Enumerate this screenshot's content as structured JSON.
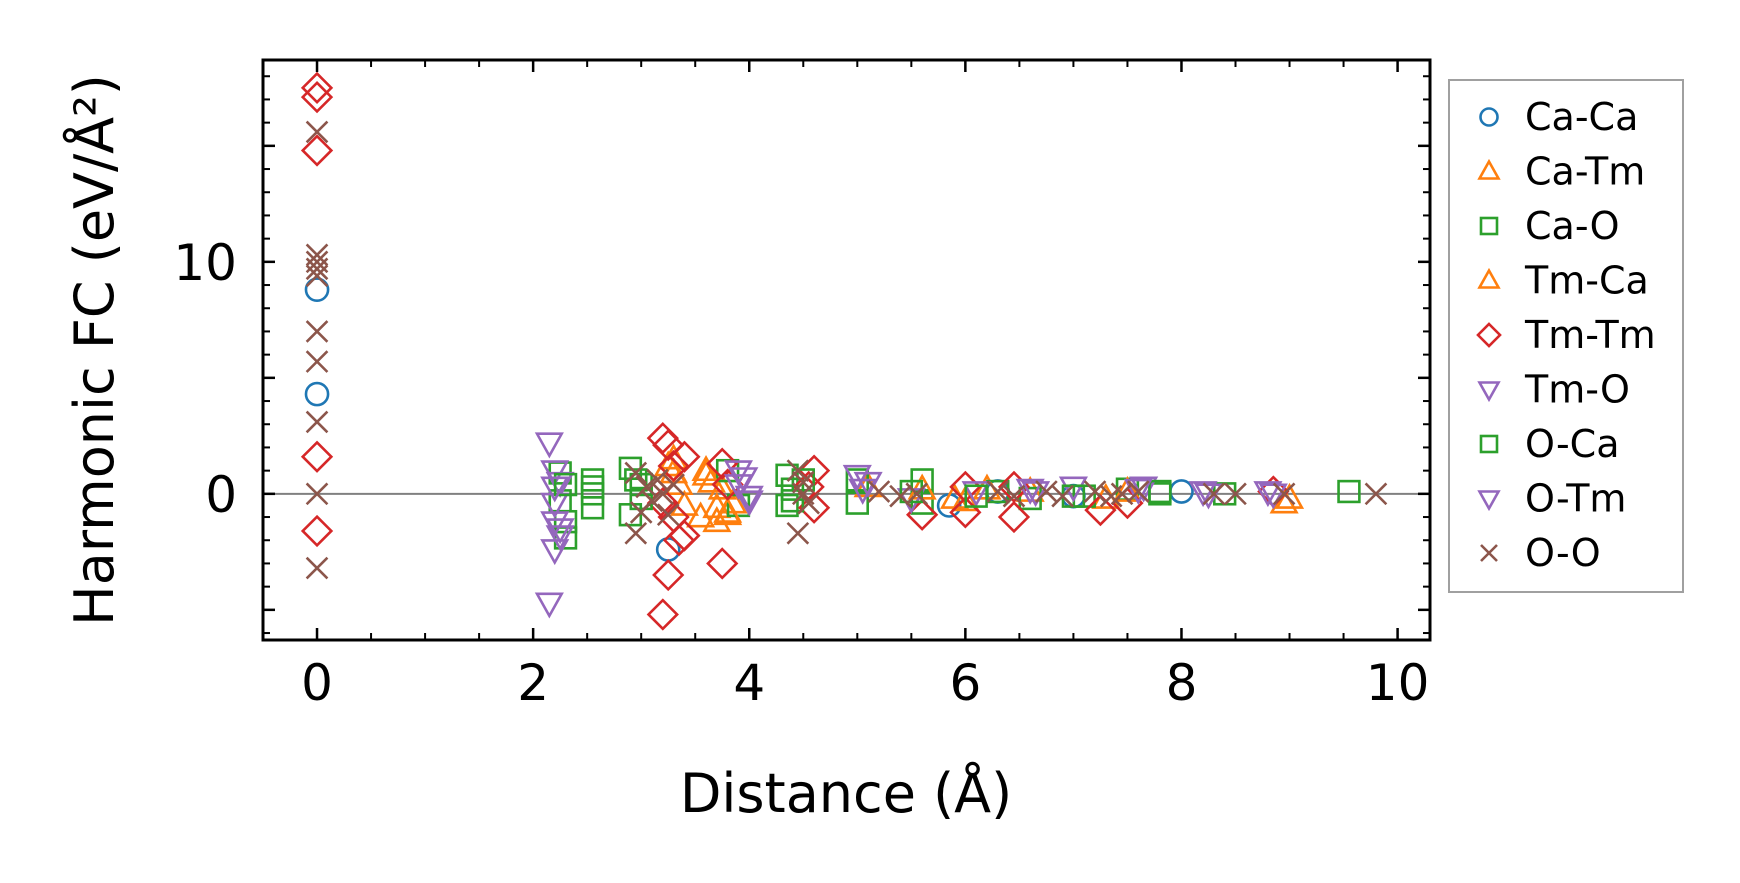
{
  "chart_data": {
    "type": "scatter",
    "title": "",
    "xlabel": "Distance (Å)",
    "ylabel": "Harmonic FC (eV/Å²)",
    "xlim": [
      -0.5,
      10.3
    ],
    "ylim": [
      -6.3,
      18.7
    ],
    "xticks": [
      0,
      2,
      4,
      6,
      8,
      10
    ],
    "yticks": [
      0,
      10
    ],
    "zero_line": true,
    "grid": false,
    "legend_position": "outside-right",
    "series": [
      {
        "name": "Ca-Ca",
        "marker": "circle",
        "color": "#1f77b4",
        "points": [
          [
            0,
            8.8
          ],
          [
            0,
            4.3
          ],
          [
            3.25,
            -2.4
          ],
          [
            5.85,
            -0.5
          ],
          [
            6.3,
            0.1
          ],
          [
            7.0,
            -0.1
          ],
          [
            8.0,
            0.1
          ]
        ]
      },
      {
        "name": "Ca-Tm",
        "marker": "triangle-up",
        "color": "#ff7f0e",
        "points": [
          [
            3.25,
            1.2
          ],
          [
            3.3,
            0.9
          ],
          [
            3.35,
            0.4
          ],
          [
            3.55,
            -1.0
          ],
          [
            3.6,
            1.0
          ],
          [
            3.65,
            0.5
          ],
          [
            3.7,
            -0.6
          ],
          [
            3.75,
            0.2
          ],
          [
            3.8,
            -0.9
          ],
          [
            3.85,
            -0.4
          ],
          [
            5.1,
            0.3
          ],
          [
            5.9,
            -0.2
          ],
          [
            6.2,
            0.2
          ],
          [
            6.6,
            0.1
          ],
          [
            7.3,
            -0.2
          ],
          [
            8.95,
            -0.4
          ]
        ]
      },
      {
        "name": "Ca-O",
        "marker": "square",
        "color": "#2ca02c",
        "points": [
          [
            2.25,
            0.9
          ],
          [
            2.25,
            -0.3
          ],
          [
            2.3,
            -1.2
          ],
          [
            2.3,
            -1.9
          ],
          [
            2.55,
            0.6
          ],
          [
            2.55,
            0.0
          ],
          [
            2.55,
            -0.6
          ],
          [
            2.9,
            1.1
          ],
          [
            2.9,
            -0.9
          ],
          [
            3.0,
            0.4
          ],
          [
            3.8,
            1.0
          ],
          [
            3.9,
            -0.5
          ],
          [
            4.35,
            0.8
          ],
          [
            4.35,
            -0.5
          ],
          [
            4.4,
            0.2
          ],
          [
            5.0,
            0.6
          ],
          [
            5.0,
            -0.4
          ],
          [
            5.6,
            0.6
          ],
          [
            5.6,
            -0.4
          ],
          [
            6.3,
            0.1
          ],
          [
            6.6,
            -0.2
          ],
          [
            7.1,
            -0.1
          ],
          [
            7.5,
            0.2
          ],
          [
            7.8,
            0.0
          ],
          [
            8.4,
            0.0
          ],
          [
            9.55,
            0.1
          ]
        ]
      },
      {
        "name": "Tm-Ca",
        "marker": "triangle-up",
        "color": "#ff7f0e",
        "points": [
          [
            3.3,
            1.5
          ],
          [
            3.4,
            -0.5
          ],
          [
            3.6,
            0.8
          ],
          [
            3.7,
            -1.2
          ],
          [
            3.8,
            -0.8
          ],
          [
            5.6,
            0.2
          ],
          [
            6.0,
            -0.3
          ],
          [
            7.5,
            0.1
          ],
          [
            9.0,
            -0.2
          ]
        ]
      },
      {
        "name": "Tm-Tm",
        "marker": "diamond",
        "color": "#d62728",
        "points": [
          [
            0,
            17.5
          ],
          [
            0,
            17.1
          ],
          [
            0,
            14.8
          ],
          [
            0,
            1.6
          ],
          [
            0,
            -1.6
          ],
          [
            3.2,
            2.4
          ],
          [
            3.25,
            2.1
          ],
          [
            3.3,
            1.2
          ],
          [
            3.2,
            -0.4
          ],
          [
            3.3,
            -1.0
          ],
          [
            3.25,
            -3.5
          ],
          [
            3.2,
            -5.2
          ],
          [
            3.35,
            -2.0
          ],
          [
            3.4,
            -1.8
          ],
          [
            3.4,
            1.6
          ],
          [
            3.75,
            1.3
          ],
          [
            3.75,
            -3.0
          ],
          [
            3.8,
            0.4
          ],
          [
            4.6,
            1.0
          ],
          [
            4.6,
            -0.6
          ],
          [
            4.55,
            0.3
          ],
          [
            5.6,
            -0.9
          ],
          [
            6.0,
            0.3
          ],
          [
            6.0,
            -0.8
          ],
          [
            6.45,
            -1.0
          ],
          [
            6.45,
            0.3
          ],
          [
            7.25,
            -0.7
          ],
          [
            7.5,
            -0.4
          ],
          [
            8.85,
            0.1
          ]
        ]
      },
      {
        "name": "Tm-O",
        "marker": "triangle-down",
        "color": "#9467bd",
        "points": [
          [
            2.15,
            2.2
          ],
          [
            2.15,
            -4.7
          ],
          [
            2.2,
            1.0
          ],
          [
            2.2,
            -0.4
          ],
          [
            2.2,
            -1.2
          ],
          [
            2.2,
            -2.4
          ],
          [
            2.25,
            0.5
          ],
          [
            2.25,
            -1.8
          ],
          [
            3.9,
            1.0
          ],
          [
            3.95,
            0.7
          ],
          [
            4.0,
            -0.3
          ],
          [
            5.0,
            0.8
          ],
          [
            5.1,
            0.5
          ],
          [
            5.5,
            -0.2
          ],
          [
            6.1,
            0.1
          ],
          [
            6.6,
            0.2
          ],
          [
            7.0,
            0.3
          ],
          [
            7.65,
            0.3
          ],
          [
            8.2,
            0.1
          ],
          [
            8.8,
            0.1
          ]
        ]
      },
      {
        "name": "O-Ca",
        "marker": "square",
        "color": "#2ca02c",
        "points": [
          [
            2.3,
            0.4
          ],
          [
            2.55,
            0.3
          ],
          [
            2.95,
            0.6
          ],
          [
            3.0,
            -0.2
          ],
          [
            4.4,
            -0.3
          ],
          [
            4.5,
            0.6
          ],
          [
            5.5,
            0.1
          ],
          [
            6.1,
            -0.1
          ],
          [
            7.0,
            -0.1
          ],
          [
            7.8,
            0.1
          ]
        ]
      },
      {
        "name": "O-Tm",
        "marker": "triangle-down",
        "color": "#9467bd",
        "points": [
          [
            2.2,
            0.3
          ],
          [
            2.25,
            -1.5
          ],
          [
            3.9,
            0.4
          ],
          [
            4.0,
            -0.1
          ],
          [
            5.05,
            0.2
          ],
          [
            6.65,
            0.1
          ],
          [
            7.6,
            0.2
          ],
          [
            8.25,
            0.0
          ],
          [
            8.85,
            0.0
          ]
        ]
      },
      {
        "name": "O-O",
        "marker": "x",
        "color": "#8c564b",
        "points": [
          [
            0,
            15.6
          ],
          [
            0,
            10.3
          ],
          [
            0,
            10.0
          ],
          [
            0,
            9.7
          ],
          [
            0,
            9.4
          ],
          [
            0,
            7.0
          ],
          [
            0,
            5.7
          ],
          [
            0,
            3.1
          ],
          [
            0,
            0.0
          ],
          [
            0,
            -3.2
          ],
          [
            2.95,
            -1.7
          ],
          [
            2.95,
            0.9
          ],
          [
            3.0,
            -0.8
          ],
          [
            3.05,
            0.3
          ],
          [
            3.1,
            -0.3
          ],
          [
            3.15,
            0.6
          ],
          [
            3.2,
            0.0
          ],
          [
            3.25,
            -0.9
          ],
          [
            3.3,
            0.4
          ],
          [
            4.45,
            1.0
          ],
          [
            4.45,
            -1.7
          ],
          [
            4.5,
            0.5
          ],
          [
            4.55,
            -0.4
          ],
          [
            4.5,
            0.0
          ],
          [
            5.2,
            0.1
          ],
          [
            5.4,
            -0.1
          ],
          [
            5.55,
            0.0
          ],
          [
            6.3,
            0.1
          ],
          [
            6.45,
            -0.1
          ],
          [
            6.75,
            0.1
          ],
          [
            6.9,
            -0.1
          ],
          [
            7.2,
            0.1
          ],
          [
            7.35,
            -0.1
          ],
          [
            7.45,
            0.0
          ],
          [
            7.6,
            0.1
          ],
          [
            8.3,
            0.0
          ],
          [
            8.5,
            0.0
          ],
          [
            8.95,
            0.0
          ],
          [
            9.8,
            0.0
          ]
        ]
      }
    ]
  }
}
